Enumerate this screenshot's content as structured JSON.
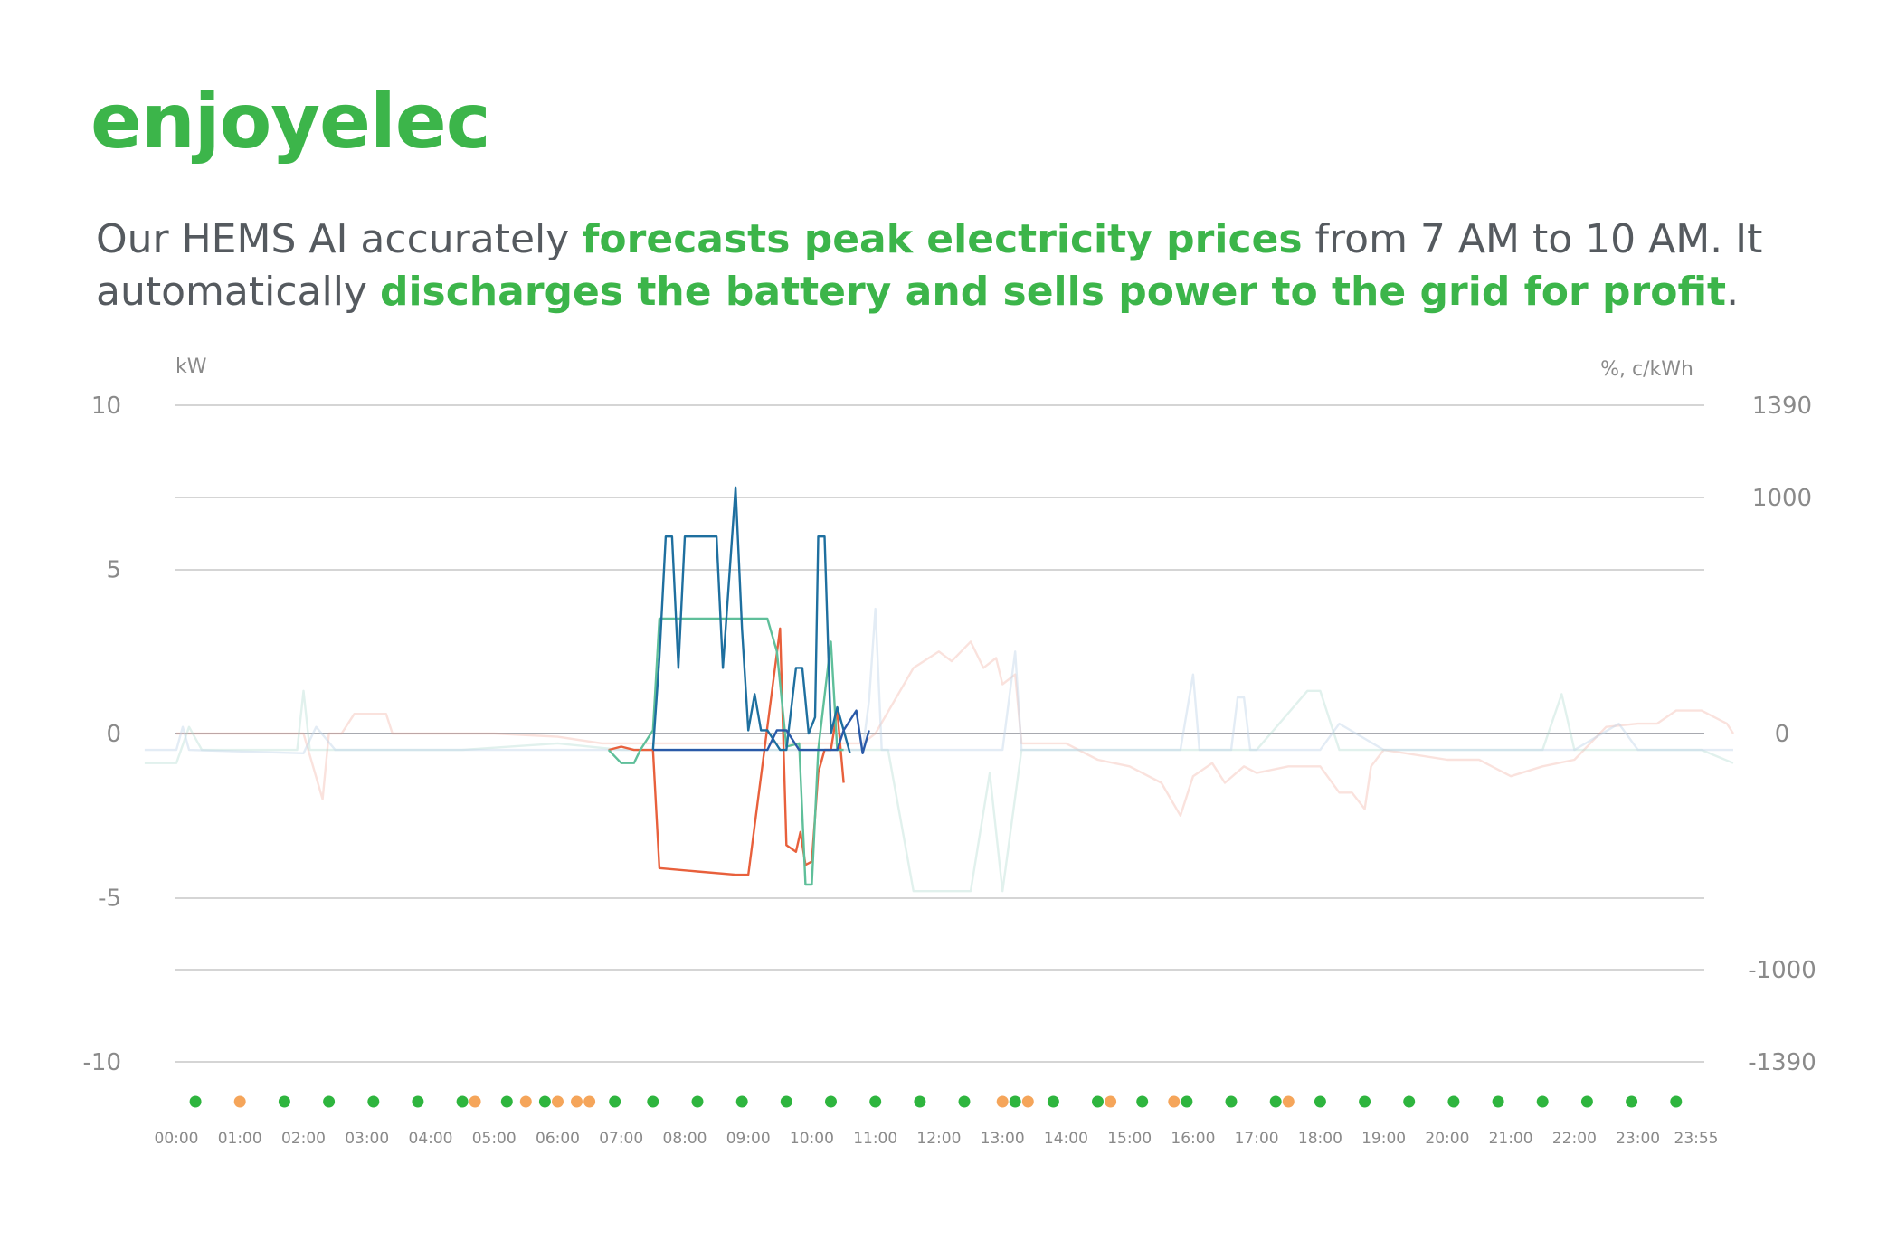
{
  "brand": {
    "name": "enjoyelec",
    "color": "#3cb54a"
  },
  "headline": {
    "part1": "Our HEMS AI accurately ",
    "highlight1": "forecasts peak electricity prices",
    "part2": " from 7 AM to 10 AM. It automatically ",
    "highlight2": "discharges the battery and sells power to the grid for profit",
    "part3": ".",
    "text_color": "#555a5f",
    "highlight_color": "#3cb54a"
  },
  "chart_data": {
    "type": "line",
    "left_axis": {
      "unit": "kW",
      "ticks": [
        "10",
        "5",
        "0",
        "-5",
        "-10"
      ],
      "range": [
        -10,
        10
      ]
    },
    "right_axis": {
      "unit": "%, c/kWh",
      "ticks": [
        "1390",
        "1000",
        "0",
        "-1000",
        "-1390"
      ],
      "range": [
        -1390,
        1390
      ]
    },
    "x_ticks": [
      "00:00",
      "01:00",
      "02:00",
      "03:00",
      "04:00",
      "05:00",
      "06:00",
      "07:00",
      "08:00",
      "09:00",
      "10:00",
      "11:00",
      "12:00",
      "13:00",
      "14:00",
      "15:00",
      "16:00",
      "17:00",
      "18:00",
      "19:00",
      "20:00",
      "21:00",
      "22:00",
      "23:00",
      "23:55"
    ],
    "grid": true,
    "series": [
      {
        "color": "#e8603c",
        "opacity": 1,
        "points": [
          [
            6.8,
            -0.5
          ],
          [
            7.0,
            -0.4
          ],
          [
            7.2,
            -0.5
          ],
          [
            7.5,
            -0.5
          ],
          [
            7.6,
            -4.1
          ],
          [
            8.2,
            -4.2
          ],
          [
            8.8,
            -4.3
          ],
          [
            9.0,
            -4.3
          ],
          [
            9.5,
            3.2
          ],
          [
            9.6,
            -3.4
          ],
          [
            9.75,
            -3.6
          ],
          [
            9.82,
            -3.0
          ],
          [
            9.9,
            -4.0
          ],
          [
            10.0,
            -3.9
          ],
          [
            10.1,
            -1.2
          ],
          [
            10.2,
            -0.5
          ],
          [
            10.3,
            -0.5
          ],
          [
            10.4,
            0.7
          ],
          [
            10.5,
            -1.5
          ]
        ]
      },
      {
        "color": "#5fbf9a",
        "opacity": 1,
        "points": [
          [
            6.8,
            -0.5
          ],
          [
            7.0,
            -0.9
          ],
          [
            7.2,
            -0.9
          ],
          [
            7.3,
            -0.5
          ],
          [
            7.5,
            0.1
          ],
          [
            7.6,
            3.5
          ],
          [
            8.5,
            3.5
          ],
          [
            9.3,
            3.5
          ],
          [
            9.45,
            2.5
          ],
          [
            9.6,
            -0.4
          ],
          [
            9.8,
            -0.3
          ],
          [
            9.9,
            -4.6
          ],
          [
            10.0,
            -4.6
          ],
          [
            10.1,
            -0.5
          ],
          [
            10.3,
            2.8
          ],
          [
            10.4,
            -0.5
          ],
          [
            10.5,
            -0.5
          ]
        ]
      },
      {
        "color": "#1e6f9f",
        "opacity": 1,
        "points": [
          [
            7.5,
            -0.5
          ],
          [
            7.6,
            2.3
          ],
          [
            7.7,
            6.0
          ],
          [
            7.8,
            6.0
          ],
          [
            7.9,
            2.0
          ],
          [
            8.0,
            6.0
          ],
          [
            8.5,
            6.0
          ],
          [
            8.6,
            2.0
          ],
          [
            8.8,
            7.5
          ],
          [
            8.9,
            3.2
          ],
          [
            9.0,
            0.1
          ],
          [
            9.1,
            1.2
          ],
          [
            9.2,
            0.1
          ],
          [
            9.3,
            0.1
          ],
          [
            9.5,
            -0.5
          ],
          [
            9.6,
            -0.5
          ],
          [
            9.75,
            2.0
          ],
          [
            9.85,
            2.0
          ],
          [
            9.95,
            0
          ],
          [
            10.05,
            0.5
          ],
          [
            10.1,
            6.0
          ],
          [
            10.2,
            6.0
          ],
          [
            10.3,
            0
          ],
          [
            10.4,
            0.8
          ],
          [
            10.5,
            0.1
          ],
          [
            10.6,
            -0.6
          ]
        ]
      },
      {
        "color": "#2a5aa8",
        "opacity": 1,
        "points": [
          [
            7.5,
            -0.5
          ],
          [
            8.3,
            -0.5
          ],
          [
            9.0,
            -0.5
          ],
          [
            9.3,
            -0.5
          ],
          [
            9.45,
            0.1
          ],
          [
            9.6,
            0.1
          ],
          [
            9.7,
            -0.2
          ],
          [
            9.8,
            -0.5
          ],
          [
            10.4,
            -0.5
          ],
          [
            10.5,
            0.1
          ],
          [
            10.7,
            0.7
          ],
          [
            10.8,
            -0.6
          ],
          [
            10.9,
            0.1
          ]
        ]
      },
      {
        "color": "#f0a090",
        "opacity": 0.3,
        "points": [
          [
            0,
            0
          ],
          [
            1.0,
            0
          ],
          [
            2.0,
            0
          ],
          [
            2.3,
            -2.0
          ],
          [
            2.4,
            0
          ],
          [
            2.6,
            0
          ],
          [
            2.8,
            0.6
          ],
          [
            3.3,
            0.6
          ],
          [
            3.4,
            0
          ],
          [
            4.0,
            0
          ],
          [
            5.0,
            0
          ],
          [
            6.0,
            -0.1
          ],
          [
            6.7,
            -0.3
          ],
          [
            10.8,
            -0.3
          ],
          [
            11.0,
            0
          ],
          [
            11.6,
            2.0
          ],
          [
            12.0,
            2.5
          ],
          [
            12.2,
            2.2
          ],
          [
            12.5,
            2.8
          ],
          [
            12.7,
            2.0
          ],
          [
            12.9,
            2.3
          ],
          [
            13.0,
            1.5
          ],
          [
            13.2,
            1.8
          ],
          [
            13.3,
            -0.3
          ],
          [
            14.0,
            -0.3
          ],
          [
            14.5,
            -0.8
          ],
          [
            15.0,
            -1.0
          ],
          [
            15.5,
            -1.5
          ],
          [
            15.8,
            -2.5
          ],
          [
            16.0,
            -1.3
          ],
          [
            16.3,
            -0.9
          ],
          [
            16.5,
            -1.5
          ],
          [
            16.8,
            -1.0
          ],
          [
            17.0,
            -1.2
          ],
          [
            17.5,
            -1.0
          ],
          [
            18.0,
            -1.0
          ],
          [
            18.3,
            -1.8
          ],
          [
            18.5,
            -1.8
          ],
          [
            18.7,
            -2.3
          ],
          [
            18.8,
            -1.0
          ],
          [
            19.0,
            -0.5
          ],
          [
            20.0,
            -0.8
          ],
          [
            20.5,
            -0.8
          ],
          [
            21.0,
            -1.3
          ],
          [
            21.5,
            -1.0
          ],
          [
            22.0,
            -0.8
          ],
          [
            22.5,
            0.2
          ],
          [
            23.0,
            0.3
          ],
          [
            23.3,
            0.3
          ],
          [
            23.6,
            0.7
          ],
          [
            24.0,
            0.7
          ],
          [
            24.4,
            0.3
          ],
          [
            24.5,
            0
          ]
        ]
      },
      {
        "color": "#a8d8cc",
        "opacity": 0.35,
        "points": [
          [
            -0.5,
            -0.9
          ],
          [
            0,
            -0.9
          ],
          [
            0.2,
            0.2
          ],
          [
            0.4,
            -0.5
          ],
          [
            1.5,
            -0.5
          ],
          [
            1.9,
            -0.5
          ],
          [
            2.0,
            1.3
          ],
          [
            2.1,
            -0.5
          ],
          [
            3.5,
            -0.5
          ],
          [
            4.5,
            -0.5
          ],
          [
            6.0,
            -0.3
          ],
          [
            7.0,
            -0.5
          ],
          [
            11.2,
            -0.5
          ],
          [
            11.6,
            -4.8
          ],
          [
            12.5,
            -4.8
          ],
          [
            12.8,
            -1.2
          ],
          [
            13.0,
            -4.8
          ],
          [
            13.3,
            -0.5
          ],
          [
            14.0,
            -0.5
          ],
          [
            15.0,
            -0.5
          ],
          [
            16.0,
            -0.5
          ],
          [
            17.0,
            -0.5
          ],
          [
            17.8,
            1.3
          ],
          [
            18.0,
            1.3
          ],
          [
            18.3,
            -0.5
          ],
          [
            20.0,
            -0.5
          ],
          [
            21.5,
            -0.5
          ],
          [
            21.8,
            1.2
          ],
          [
            22.0,
            -0.5
          ],
          [
            24.0,
            -0.5
          ],
          [
            24.5,
            -0.9
          ]
        ]
      },
      {
        "color": "#c0d4e8",
        "opacity": 0.45,
        "points": [
          [
            -0.5,
            -0.5
          ],
          [
            0,
            -0.5
          ],
          [
            0.1,
            0.2
          ],
          [
            0.2,
            -0.5
          ],
          [
            2.0,
            -0.6
          ],
          [
            2.2,
            0.2
          ],
          [
            2.5,
            -0.5
          ],
          [
            4.0,
            -0.5
          ],
          [
            7.0,
            -0.5
          ],
          [
            10.8,
            -0.5
          ],
          [
            10.9,
            1.0
          ],
          [
            11.0,
            3.8
          ],
          [
            11.1,
            -0.5
          ],
          [
            12.0,
            -0.5
          ],
          [
            13.0,
            -0.5
          ],
          [
            13.2,
            2.5
          ],
          [
            13.3,
            -0.5
          ],
          [
            15.0,
            -0.5
          ],
          [
            15.8,
            -0.5
          ],
          [
            16.0,
            1.8
          ],
          [
            16.1,
            -0.5
          ],
          [
            16.6,
            -0.5
          ],
          [
            16.7,
            1.1
          ],
          [
            16.8,
            1.1
          ],
          [
            16.9,
            -0.5
          ],
          [
            17.5,
            -0.5
          ],
          [
            18.0,
            -0.5
          ],
          [
            18.3,
            0.3
          ],
          [
            19.0,
            -0.5
          ],
          [
            20.0,
            -0.5
          ],
          [
            21.0,
            -0.5
          ],
          [
            22.0,
            -0.5
          ],
          [
            22.7,
            0.3
          ],
          [
            23.0,
            -0.5
          ],
          [
            24.5,
            -0.5
          ]
        ]
      }
    ],
    "price_dots": [
      {
        "t": 0.3,
        "status": "green"
      },
      {
        "t": 1.0,
        "status": "orange"
      },
      {
        "t": 1.7,
        "status": "green"
      },
      {
        "t": 2.4,
        "status": "green"
      },
      {
        "t": 3.1,
        "status": "green"
      },
      {
        "t": 3.8,
        "status": "green"
      },
      {
        "t": 4.5,
        "status": "green"
      },
      {
        "t": 4.7,
        "status": "orange"
      },
      {
        "t": 5.2,
        "status": "green"
      },
      {
        "t": 5.5,
        "status": "orange"
      },
      {
        "t": 5.8,
        "status": "green"
      },
      {
        "t": 6.0,
        "status": "orange"
      },
      {
        "t": 6.3,
        "status": "orange"
      },
      {
        "t": 6.5,
        "status": "orange"
      },
      {
        "t": 6.9,
        "status": "green"
      },
      {
        "t": 7.5,
        "status": "green"
      },
      {
        "t": 8.2,
        "status": "green"
      },
      {
        "t": 8.9,
        "status": "green"
      },
      {
        "t": 9.6,
        "status": "green"
      },
      {
        "t": 10.3,
        "status": "green"
      },
      {
        "t": 11.0,
        "status": "green"
      },
      {
        "t": 11.7,
        "status": "green"
      },
      {
        "t": 12.4,
        "status": "green"
      },
      {
        "t": 13.0,
        "status": "orange"
      },
      {
        "t": 13.2,
        "status": "green"
      },
      {
        "t": 13.4,
        "status": "orange"
      },
      {
        "t": 13.8,
        "status": "green"
      },
      {
        "t": 14.5,
        "status": "green"
      },
      {
        "t": 14.7,
        "status": "orange"
      },
      {
        "t": 15.2,
        "status": "green"
      },
      {
        "t": 15.7,
        "status": "orange"
      },
      {
        "t": 15.9,
        "status": "green"
      },
      {
        "t": 16.6,
        "status": "green"
      },
      {
        "t": 17.3,
        "status": "green"
      },
      {
        "t": 17.5,
        "status": "orange"
      },
      {
        "t": 18.0,
        "status": "green"
      },
      {
        "t": 18.7,
        "status": "green"
      },
      {
        "t": 19.4,
        "status": "green"
      },
      {
        "t": 20.1,
        "status": "green"
      },
      {
        "t": 20.8,
        "status": "green"
      },
      {
        "t": 21.5,
        "status": "green"
      },
      {
        "t": 22.2,
        "status": "green"
      },
      {
        "t": 22.9,
        "status": "green"
      },
      {
        "t": 23.6,
        "status": "green"
      }
    ],
    "dot_colors": {
      "green": "#2eb53e",
      "orange": "#f5a55a"
    }
  }
}
